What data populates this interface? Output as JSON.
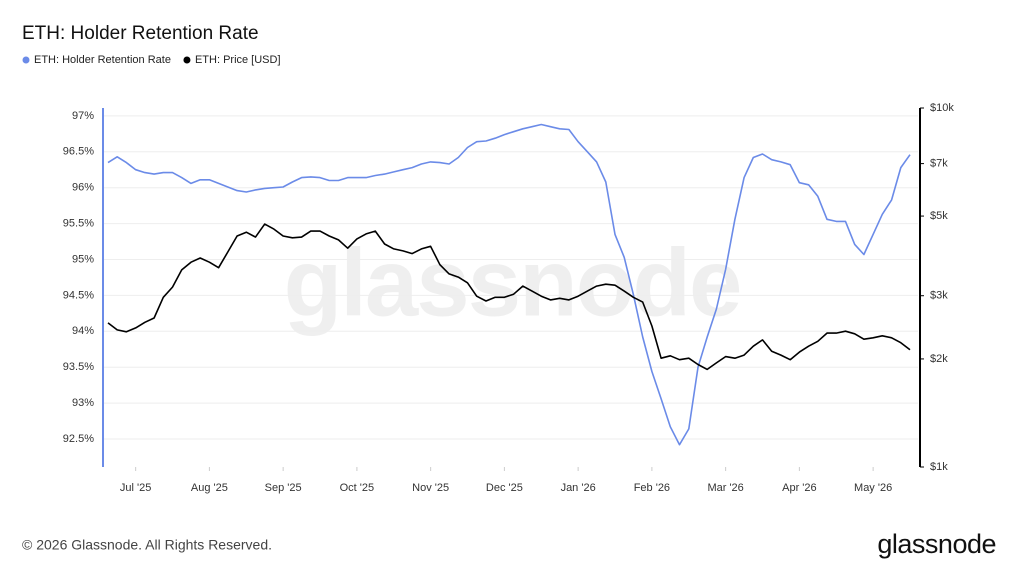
{
  "chart_data": {
    "type": "line",
    "title": "ETH: Holder Retention Rate",
    "watermark": "glassnode",
    "footer": "© 2026 Glassnode. All Rights Reserved.",
    "logo": "glassnode",
    "categories": [
      null,
      null,
      null,
      "Jul '25",
      null,
      null,
      null,
      null,
      null,
      null,
      null,
      "Aug '25",
      null,
      null,
      null,
      null,
      null,
      null,
      null,
      "Sep '25",
      null,
      null,
      null,
      null,
      null,
      null,
      null,
      "Oct '25",
      null,
      null,
      null,
      null,
      null,
      null,
      null,
      "Nov '25",
      null,
      null,
      null,
      null,
      null,
      null,
      null,
      "Dec '25",
      null,
      null,
      null,
      null,
      null,
      null,
      null,
      "Jan '26",
      null,
      null,
      null,
      null,
      null,
      null,
      null,
      "Feb '26",
      null,
      null,
      null,
      null,
      null,
      null,
      null,
      "Mar '26",
      null,
      null,
      null,
      null,
      null,
      null,
      null,
      "Apr '26",
      null,
      null,
      null,
      null,
      null,
      null,
      null,
      "May '26",
      null,
      null,
      null,
      null
    ],
    "series": [
      {
        "name": "ETH: Holder Retention Rate",
        "color": "#6b8be8",
        "axis": "y",
        "values": [
          96.35,
          96.43,
          96.35,
          96.25,
          96.21,
          96.19,
          96.21,
          96.21,
          96.14,
          96.06,
          96.11,
          96.11,
          96.06,
          96.01,
          95.96,
          95.94,
          95.97,
          95.99,
          96.0,
          96.01,
          96.08,
          96.14,
          96.15,
          96.14,
          96.1,
          96.1,
          96.14,
          96.14,
          96.14,
          96.17,
          96.19,
          96.22,
          96.25,
          96.28,
          96.33,
          96.36,
          96.35,
          96.33,
          96.42,
          96.56,
          96.64,
          96.65,
          96.69,
          96.74,
          96.78,
          96.82,
          96.85,
          96.88,
          96.85,
          96.82,
          96.81,
          96.64,
          96.5,
          96.36,
          96.08,
          95.35,
          95.03,
          94.51,
          93.92,
          93.44,
          93.06,
          92.67,
          92.42,
          92.64,
          93.5,
          93.92,
          94.31,
          94.86,
          95.56,
          96.14,
          96.42,
          96.47,
          96.39,
          96.36,
          96.32,
          96.07,
          96.04,
          95.88,
          95.56,
          95.53,
          95.53,
          95.21,
          95.07,
          95.35,
          95.63,
          95.83,
          96.28,
          96.46
        ]
      },
      {
        "name": "ETH: Price [USD]",
        "color": "#000000",
        "axis": "y2",
        "values": [
          2520,
          2410,
          2380,
          2440,
          2530,
          2600,
          2970,
          3170,
          3540,
          3720,
          3820,
          3720,
          3590,
          3970,
          4400,
          4510,
          4370,
          4750,
          4600,
          4400,
          4350,
          4370,
          4540,
          4540,
          4400,
          4290,
          4070,
          4320,
          4460,
          4540,
          4180,
          4050,
          4000,
          3930,
          4050,
          4120,
          3660,
          3450,
          3380,
          3260,
          2990,
          2900,
          2970,
          2970,
          3030,
          3190,
          3090,
          2990,
          2920,
          2950,
          2920,
          2990,
          3090,
          3190,
          3230,
          3210,
          3090,
          2970,
          2880,
          2470,
          2010,
          2040,
          1990,
          2010,
          1930,
          1870,
          1950,
          2030,
          2010,
          2050,
          2170,
          2260,
          2100,
          2050,
          1990,
          2090,
          2170,
          2240,
          2360,
          2360,
          2390,
          2350,
          2270,
          2290,
          2320,
          2290,
          2220,
          2120
        ]
      }
    ],
    "ylim": [
      92.11,
      97.11
    ],
    "yticks": [
      {
        "value": 92.5,
        "label": "92.5%"
      },
      {
        "value": 93,
        "label": "93%"
      },
      {
        "value": 93.5,
        "label": "93.5%"
      },
      {
        "value": 94,
        "label": "94%"
      },
      {
        "value": 94.5,
        "label": "94.5%"
      },
      {
        "value": 95,
        "label": "95%"
      },
      {
        "value": 95.5,
        "label": "95.5%"
      },
      {
        "value": 96,
        "label": "96%"
      },
      {
        "value": 96.5,
        "label": "96.5%"
      },
      {
        "value": 97,
        "label": "97%"
      }
    ],
    "y2lim": [
      1000,
      10000
    ],
    "y2log": true,
    "y2ticks": [
      {
        "value": 1000,
        "label": "$1k"
      },
      {
        "value": 2000,
        "label": "$2k"
      },
      {
        "value": 3000,
        "label": "$3k"
      },
      {
        "value": 5000,
        "label": "$5k"
      },
      {
        "value": 7000,
        "label": "$7k"
      },
      {
        "value": 10000,
        "label": "$10k"
      }
    ],
    "grid": true,
    "legend": "top-left"
  }
}
